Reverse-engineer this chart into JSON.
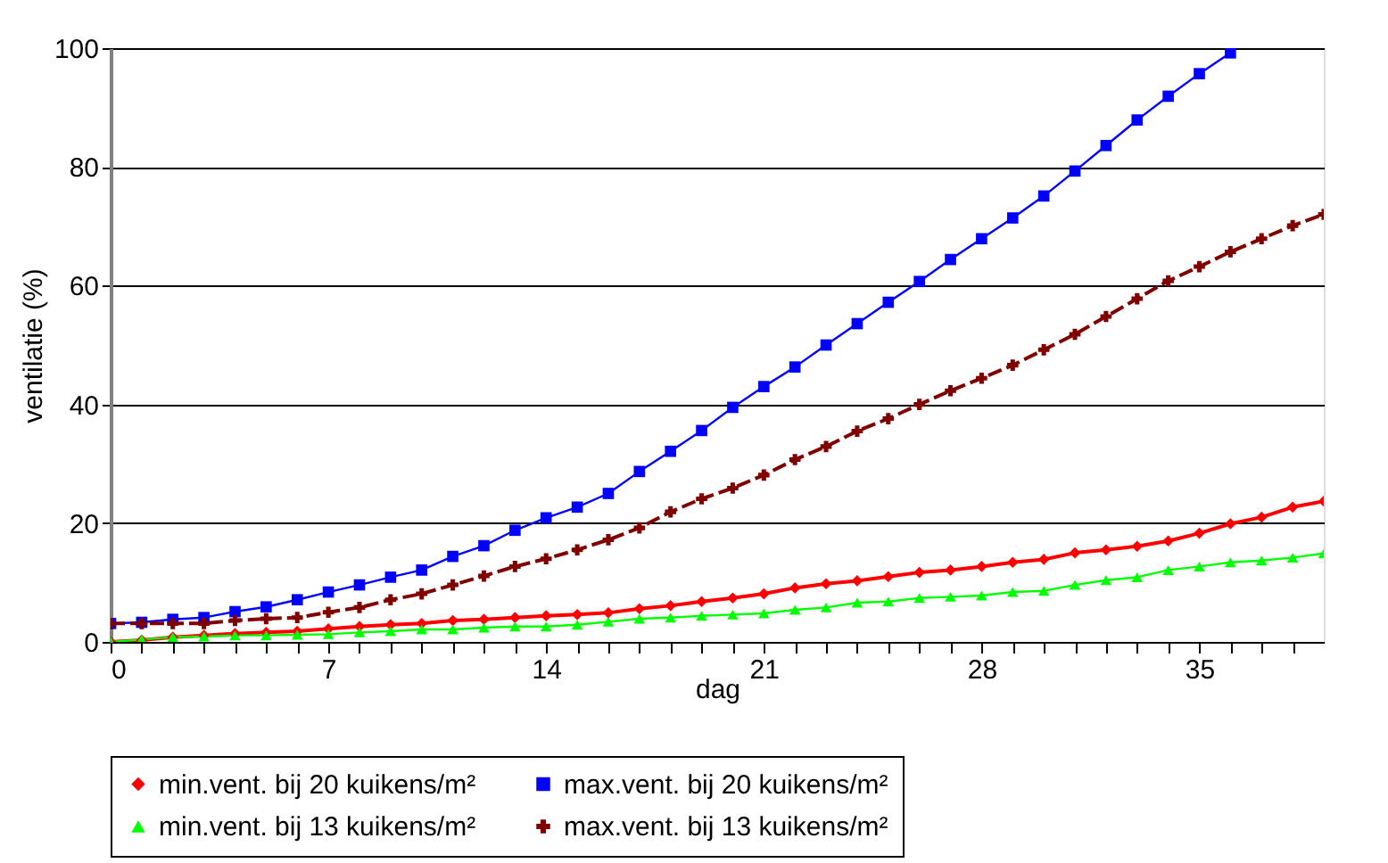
{
  "chart_data": {
    "type": "line",
    "xlabel": "dag",
    "ylabel": "ventilatie (%)",
    "x": [
      0,
      1,
      2,
      3,
      4,
      5,
      6,
      7,
      8,
      9,
      10,
      11,
      12,
      13,
      14,
      15,
      16,
      17,
      18,
      19,
      20,
      21,
      22,
      23,
      24,
      25,
      26,
      27,
      28,
      29,
      30,
      31,
      32,
      33,
      34,
      35,
      36,
      37,
      38,
      39
    ],
    "xlim": [
      0,
      39
    ],
    "xticks": [
      0,
      {
        "value": 1,
        "label": null
      },
      {
        "value": 2,
        "label": null
      },
      {
        "value": 3,
        "label": null
      },
      {
        "value": 4,
        "label": null
      },
      {
        "value": 5,
        "label": null
      },
      {
        "value": 6,
        "label": null
      },
      7,
      {
        "value": 8,
        "label": null
      },
      {
        "value": 9,
        "label": null
      },
      {
        "value": 10,
        "label": null
      },
      {
        "value": 11,
        "label": null
      },
      {
        "value": 12,
        "label": null
      },
      {
        "value": 13,
        "label": null
      },
      14,
      {
        "value": 15,
        "label": null
      },
      {
        "value": 16,
        "label": null
      },
      {
        "value": 17,
        "label": null
      },
      {
        "value": 18,
        "label": null
      },
      {
        "value": 19,
        "label": null
      },
      {
        "value": 20,
        "label": null
      },
      21,
      {
        "value": 22,
        "label": null
      },
      {
        "value": 23,
        "label": null
      },
      {
        "value": 24,
        "label": null
      },
      {
        "value": 25,
        "label": null
      },
      {
        "value": 26,
        "label": null
      },
      {
        "value": 27,
        "label": null
      },
      28,
      {
        "value": 29,
        "label": null
      },
      {
        "value": 30,
        "label": null
      },
      {
        "value": 31,
        "label": null
      },
      {
        "value": 32,
        "label": null
      },
      {
        "value": 33,
        "label": null
      },
      {
        "value": 34,
        "label": null
      },
      35,
      {
        "value": 36,
        "label": null
      },
      {
        "value": 37,
        "label": null
      },
      {
        "value": 38,
        "label": null
      }
    ],
    "ylim": [
      0,
      100
    ],
    "yticks": [
      0,
      20,
      40,
      60,
      80,
      100
    ],
    "grid": "y",
    "legend": "bottom",
    "series": [
      {
        "name": "min.vent. bij 20 kuikens/m²",
        "color": "#ff0000",
        "marker": "diamond",
        "line_style": "solid",
        "values": [
          0,
          0.3,
          0.8,
          1.1,
          1.4,
          1.6,
          1.8,
          2.2,
          2.6,
          2.9,
          3.1,
          3.6,
          3.8,
          4.1,
          4.4,
          4.6,
          4.9,
          5.6,
          6.1,
          6.8,
          7.4,
          8.1,
          9.1,
          9.8,
          10.3,
          11.0,
          11.7,
          12.1,
          12.7,
          13.4,
          13.9,
          15.0,
          15.5,
          16.1,
          17.0,
          18.3,
          19.9,
          21.0,
          22.7,
          23.7
        ]
      },
      {
        "name": "max.vent. bij 20 kuikens/m²",
        "color": "#0000ff",
        "marker": "square",
        "line_style": "solid",
        "values": [
          3.1,
          3.3,
          3.8,
          4.1,
          5.1,
          5.9,
          7.1,
          8.4,
          9.6,
          10.9,
          12.1,
          14.4,
          16.2,
          18.8,
          20.9,
          22.7,
          25.0,
          28.7,
          32.1,
          35.6,
          39.5,
          43.0,
          46.3,
          50.0,
          53.6,
          57.2,
          60.7,
          64.4,
          67.9,
          71.4,
          75.1,
          79.3,
          83.6,
          87.9,
          91.9,
          95.7,
          99.2,
          null,
          null,
          null
        ]
      },
      {
        "name": "min.vent. bij 13 kuikens/m²",
        "color": "#00ff00",
        "marker": "triangle",
        "line_style": "solid",
        "values": [
          0,
          0.4,
          0.8,
          0.9,
          1.1,
          1.1,
          1.2,
          1.3,
          1.6,
          1.8,
          2.1,
          2.1,
          2.4,
          2.6,
          2.6,
          2.9,
          3.4,
          3.9,
          4.1,
          4.4,
          4.6,
          4.8,
          5.4,
          5.8,
          6.6,
          6.8,
          7.4,
          7.6,
          7.8,
          8.4,
          8.6,
          9.6,
          10.4,
          10.9,
          12.1,
          12.7,
          13.4,
          13.7,
          14.2,
          14.9
        ]
      },
      {
        "name": "max.vent. bij 13 kuikens/m²",
        "color": "#800000",
        "marker": "cross",
        "line_style": "dashed",
        "values": [
          3.1,
          3.1,
          3.1,
          3.1,
          3.6,
          3.9,
          4.1,
          5.0,
          5.8,
          7.1,
          8.1,
          9.6,
          11.1,
          12.7,
          14.0,
          15.5,
          17.2,
          19.2,
          21.9,
          24.1,
          25.9,
          28.1,
          30.7,
          32.9,
          35.5,
          37.6,
          40.0,
          42.3,
          44.4,
          46.6,
          49.2,
          51.8,
          54.8,
          57.8,
          60.8,
          63.2,
          65.7,
          67.9,
          70.1,
          72.0
        ]
      }
    ]
  }
}
